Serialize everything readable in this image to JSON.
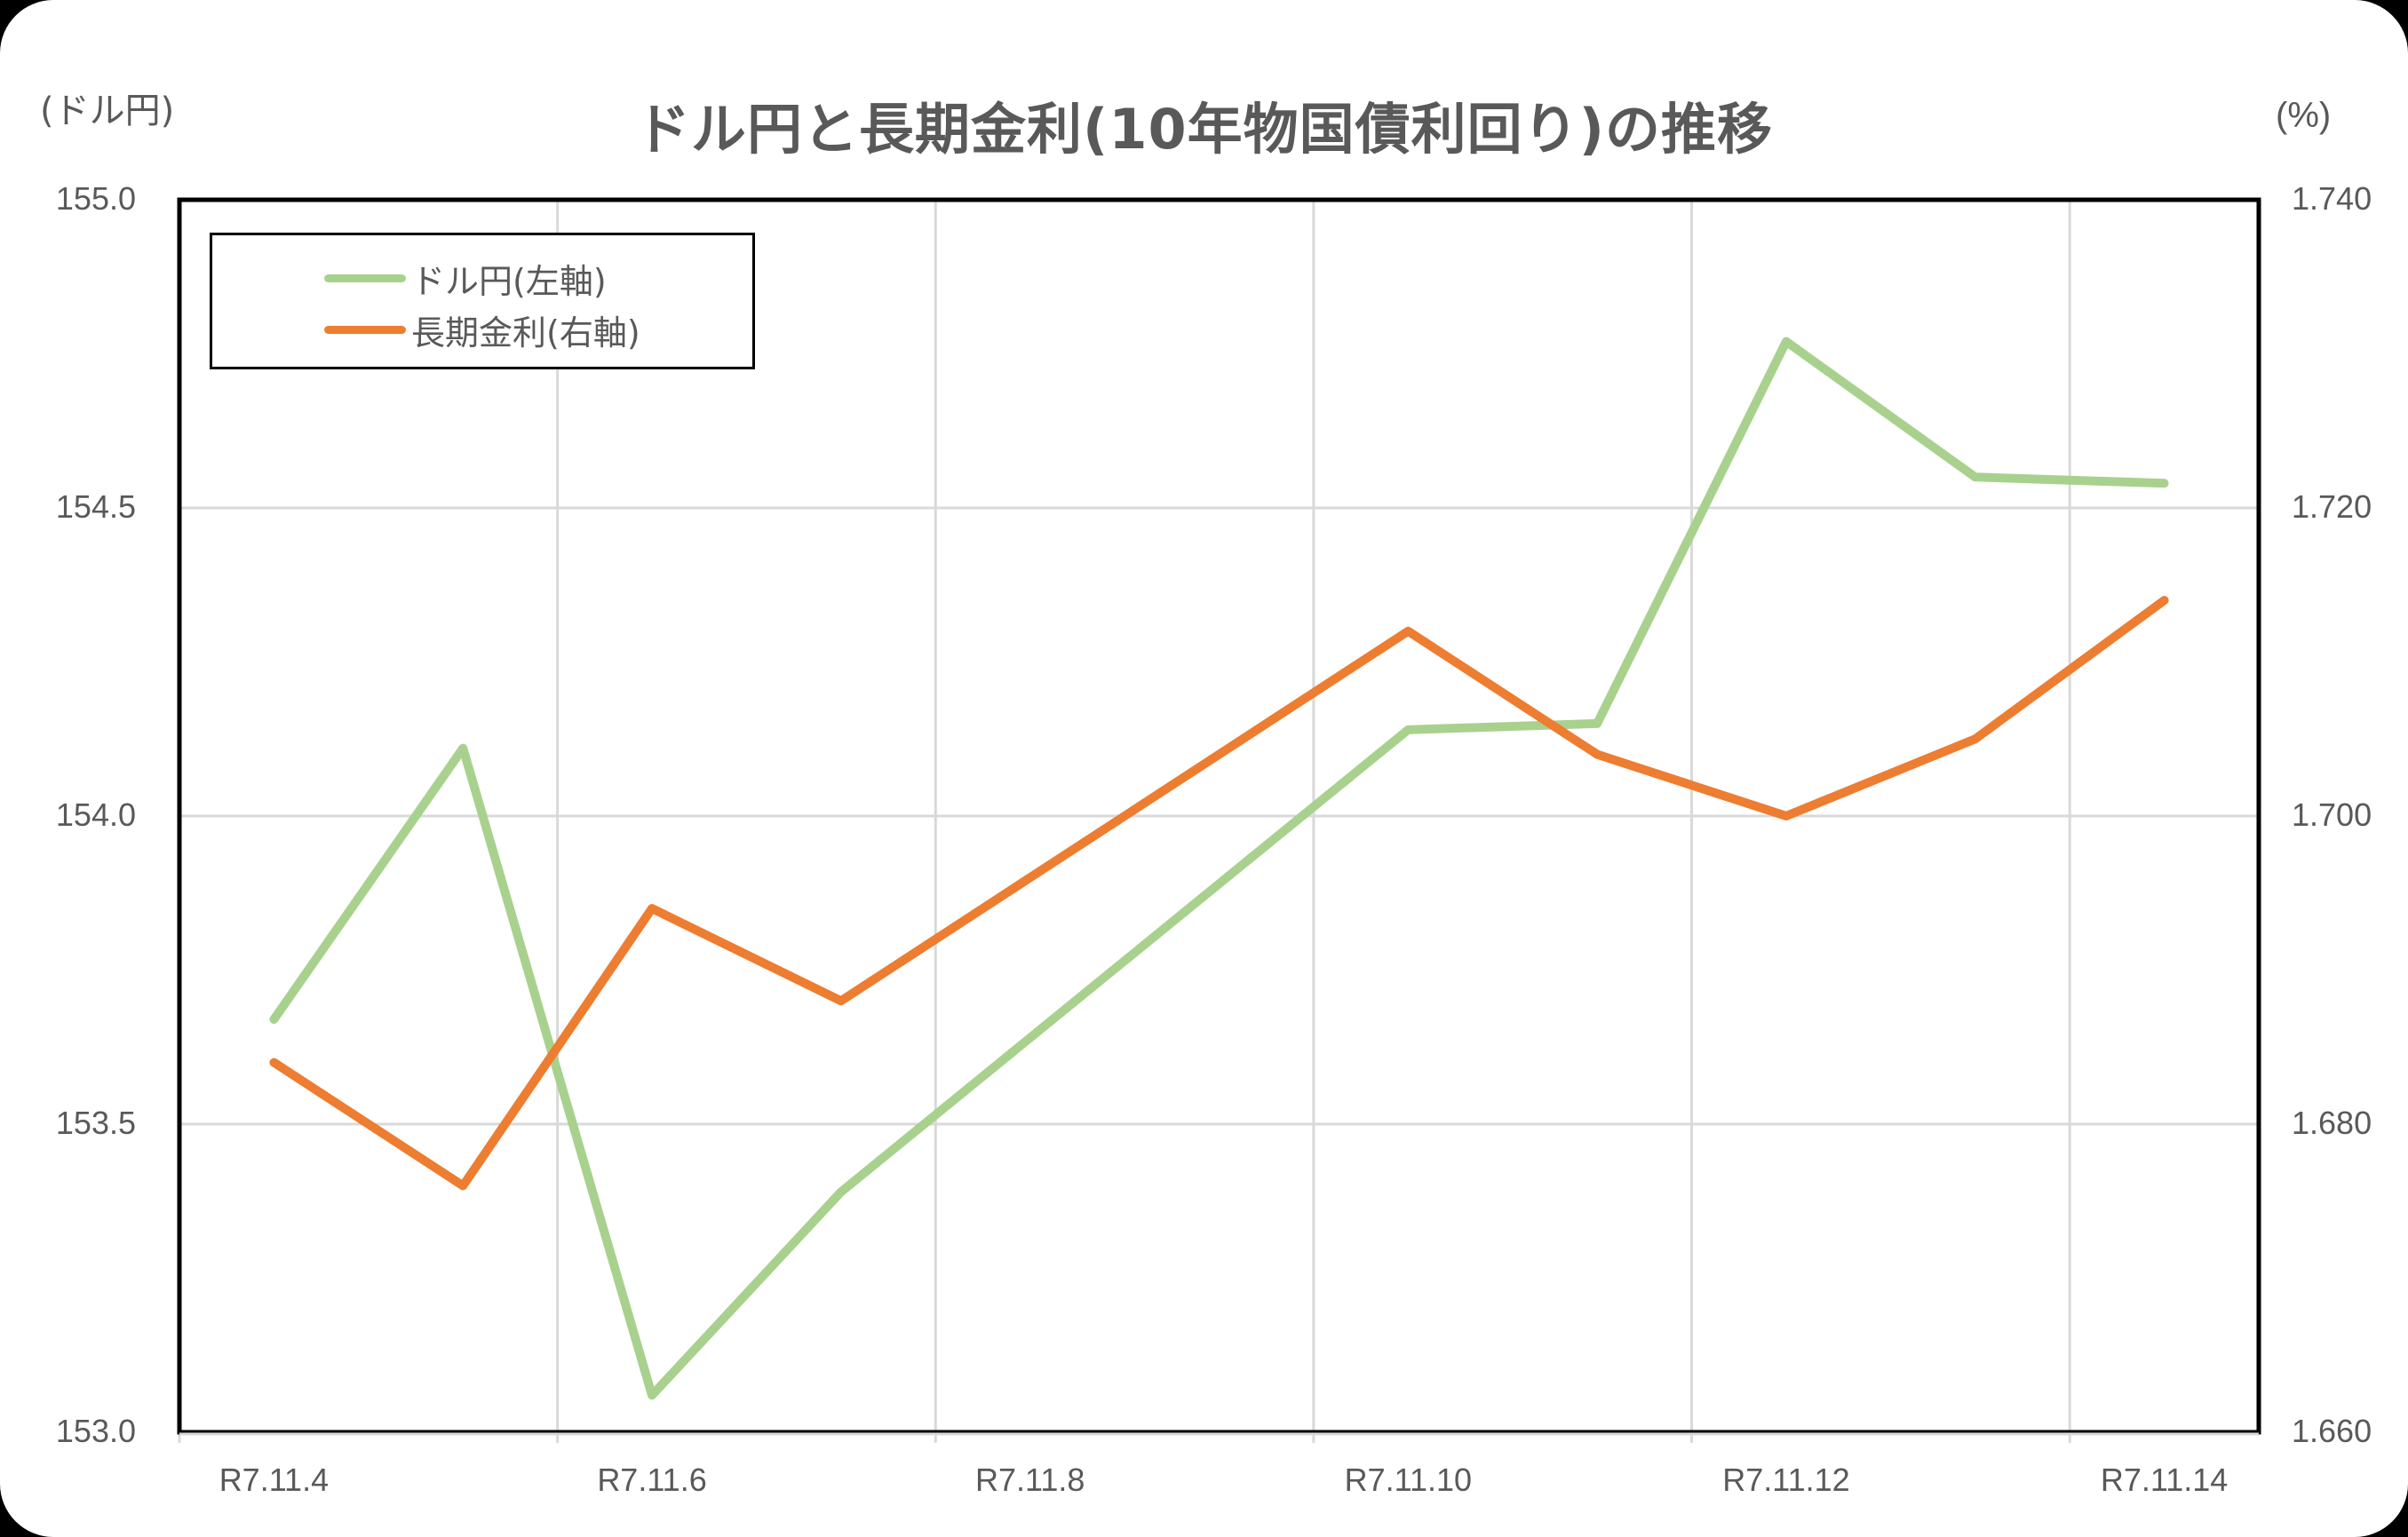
{
  "title": "ドル円と長期金利(10年物国債利回り)の推移",
  "left_unit": "(ドル円)",
  "right_unit": "(%)",
  "left_axis": {
    "ticks": [
      "155.0",
      "154.5",
      "154.0",
      "153.5",
      "153.0"
    ],
    "min": 153.0,
    "max": 155.0
  },
  "right_axis": {
    "ticks": [
      "1.740",
      "1.720",
      "1.700",
      "1.680",
      "1.660"
    ],
    "min": 1.66,
    "max": 1.74
  },
  "x_axis": {
    "tick_labels": [
      "R7.11.4",
      "R7.11.6",
      "R7.11.8",
      "R7.11.10",
      "R7.11.12",
      "R7.11.14"
    ]
  },
  "legend": {
    "items": [
      {
        "label": "ドル円(左軸)",
        "color": "#A9D18E"
      },
      {
        "label": "長期金利(右軸)",
        "color": "#ED7D31"
      }
    ]
  },
  "colors": {
    "usdjpy": "#A9D18E",
    "jgb10y": "#ED7D31",
    "grid": "#D9D9D9",
    "text": "#595959"
  },
  "chart_data": {
    "type": "line",
    "title": "ドル円と長期金利(10年物国債利回り)の推移",
    "xlabel": "",
    "ylabel": "(ドル円)",
    "ylabel_right": "(%)",
    "x": [
      "R7.11.4",
      "R7.11.5",
      "R7.11.6",
      "R7.11.7",
      "R7.11.10",
      "R7.11.11",
      "R7.11.12",
      "R7.11.13",
      "R7.11.14"
    ],
    "x_category_index": [
      0,
      1,
      2,
      3,
      6,
      7,
      8,
      9,
      10
    ],
    "series": [
      {
        "name": "ドル円(左軸)",
        "axis": "left",
        "values": [
          153.67,
          154.11,
          153.06,
          153.39,
          154.14,
          154.15,
          154.77,
          154.55,
          154.54
        ]
      },
      {
        "name": "長期金利(右軸)",
        "axis": "right",
        "values": [
          1.684,
          1.676,
          1.694,
          1.688,
          1.712,
          1.704,
          1.7,
          1.705,
          1.714
        ]
      }
    ],
    "ylim": [
      153.0,
      155.0
    ],
    "ylim_right": [
      1.66,
      1.74
    ],
    "grid": true,
    "legend_position": "top-left inside"
  }
}
